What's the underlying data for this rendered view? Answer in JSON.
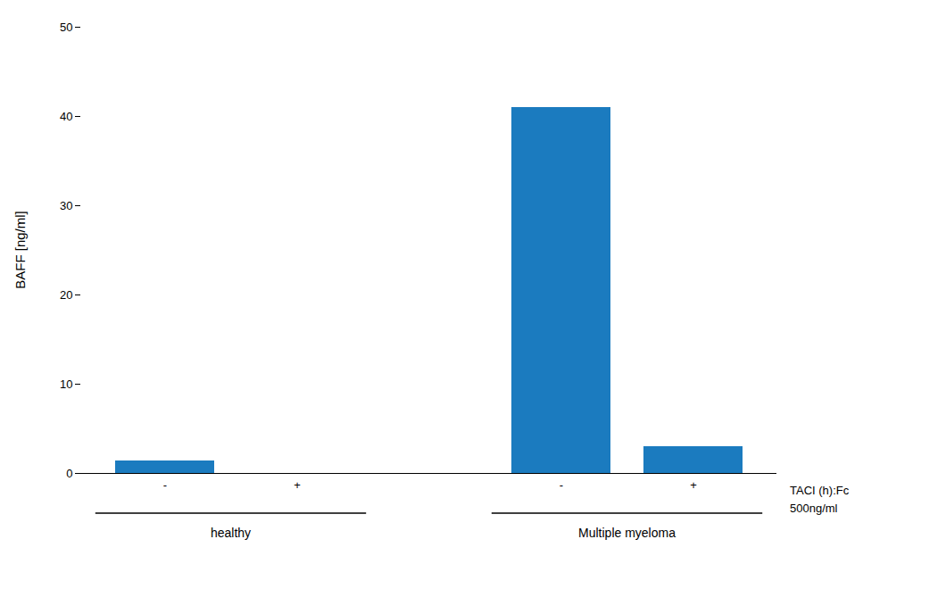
{
  "chart_data": {
    "type": "bar",
    "categories": [
      "-",
      "+",
      "-",
      "+"
    ],
    "values": [
      1.4,
      0,
      41.0,
      3.0
    ],
    "color": "#1b7bbf",
    "ylabel": "BAFF [ng/ml]",
    "ylim": [
      0,
      50
    ],
    "yticks": [
      0,
      10,
      20,
      30,
      40,
      50
    ],
    "grid": false,
    "groups": [
      {
        "name": "healthy",
        "categories": [
          "-",
          "+"
        ]
      },
      {
        "name": "Multiple myeloma",
        "categories": [
          "-",
          "+"
        ]
      }
    ],
    "annotations": [
      "TACI (h):Fc",
      "500ng/ml"
    ]
  }
}
